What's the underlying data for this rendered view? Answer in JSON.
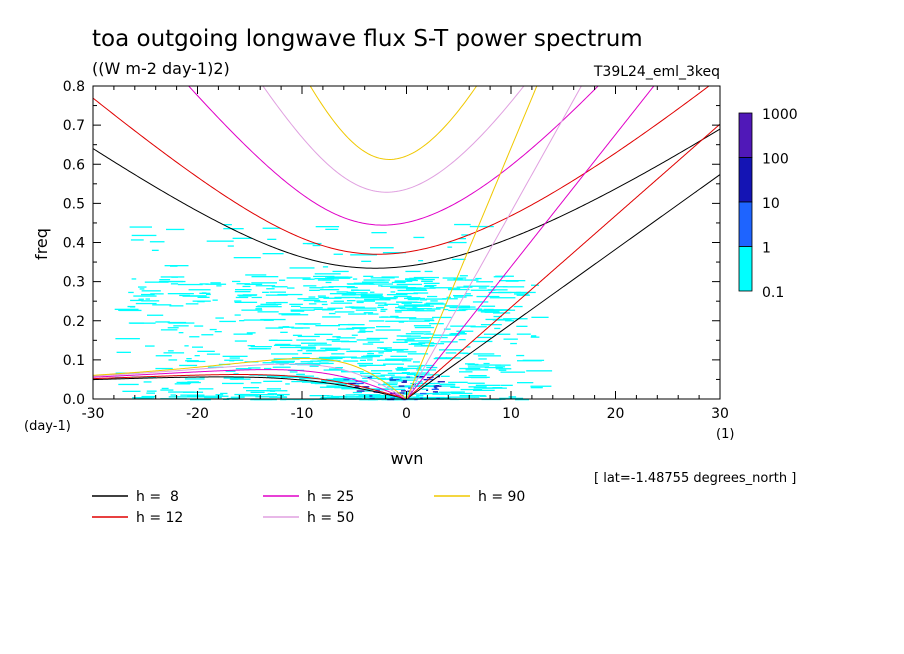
{
  "chart_data": {
    "type": "line",
    "title": "toa outgoing longwave flux S-T power spectrum",
    "units": "((W m-2 day-1)2)",
    "run_label": "T39L24_eml_3keq",
    "xlabel": "wvn",
    "ylabel": "freq",
    "y_unit": "(day-1)",
    "x_unit": "(1)",
    "xlim": [
      -30,
      30
    ],
    "ylim": [
      0,
      0.8
    ],
    "x_ticks": [
      "-30",
      "-20",
      "-10",
      "0",
      "10",
      "20",
      "30"
    ],
    "y_ticks": [
      "0.0",
      "0.1",
      "0.2",
      "0.3",
      "0.4",
      "0.5",
      "0.6",
      "0.7",
      "0.8"
    ],
    "footnote": "[ lat=-1.48755 degrees_north ]",
    "colorbar": {
      "labels": [
        "1000",
        "100",
        "10",
        "1",
        "0.1"
      ],
      "colors": [
        "#5018b8",
        "#1414b4",
        "#1e64ff",
        "#00ffff"
      ]
    },
    "series": [
      {
        "name": "h =  8",
        "color": "#000000",
        "h": 8
      },
      {
        "name": "h = 12",
        "color": "#e00000",
        "h": 12
      },
      {
        "name": "h = 25",
        "color": "#e000c8",
        "h": 25
      },
      {
        "name": "h = 50",
        "color": "#e0a0e0",
        "h": 50
      },
      {
        "name": "h = 90",
        "color": "#f0c800",
        "h": 90
      }
    ],
    "power_region": {
      "color": "#00ffff",
      "x_range": [
        -28,
        12
      ],
      "y_range": [
        0,
        0.45
      ]
    }
  }
}
